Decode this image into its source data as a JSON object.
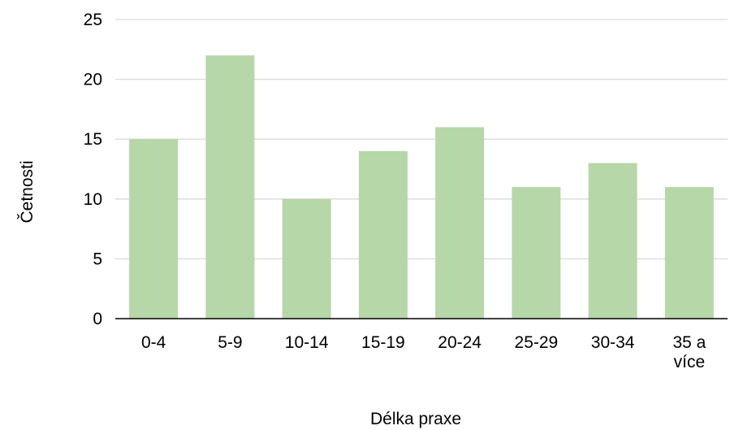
{
  "chart_data": {
    "type": "bar",
    "title": "",
    "xlabel": "Délka praxe",
    "ylabel": "Četnosti",
    "categories": [
      [
        "0-4"
      ],
      [
        "5-9"
      ],
      [
        "10-14"
      ],
      [
        "15-19"
      ],
      [
        "20-24"
      ],
      [
        "25-29"
      ],
      [
        "30-34"
      ],
      [
        "35 a",
        "více"
      ]
    ],
    "values": [
      15,
      22,
      10,
      14,
      16,
      11,
      13,
      11
    ],
    "ylim": [
      0,
      25
    ],
    "yticks": [
      0,
      5,
      10,
      15,
      20,
      25
    ],
    "grid": true,
    "legend": "none",
    "colors": {
      "bar": "#b6d7a8",
      "grid": "#d9d9d9",
      "axis": "#000000"
    }
  }
}
